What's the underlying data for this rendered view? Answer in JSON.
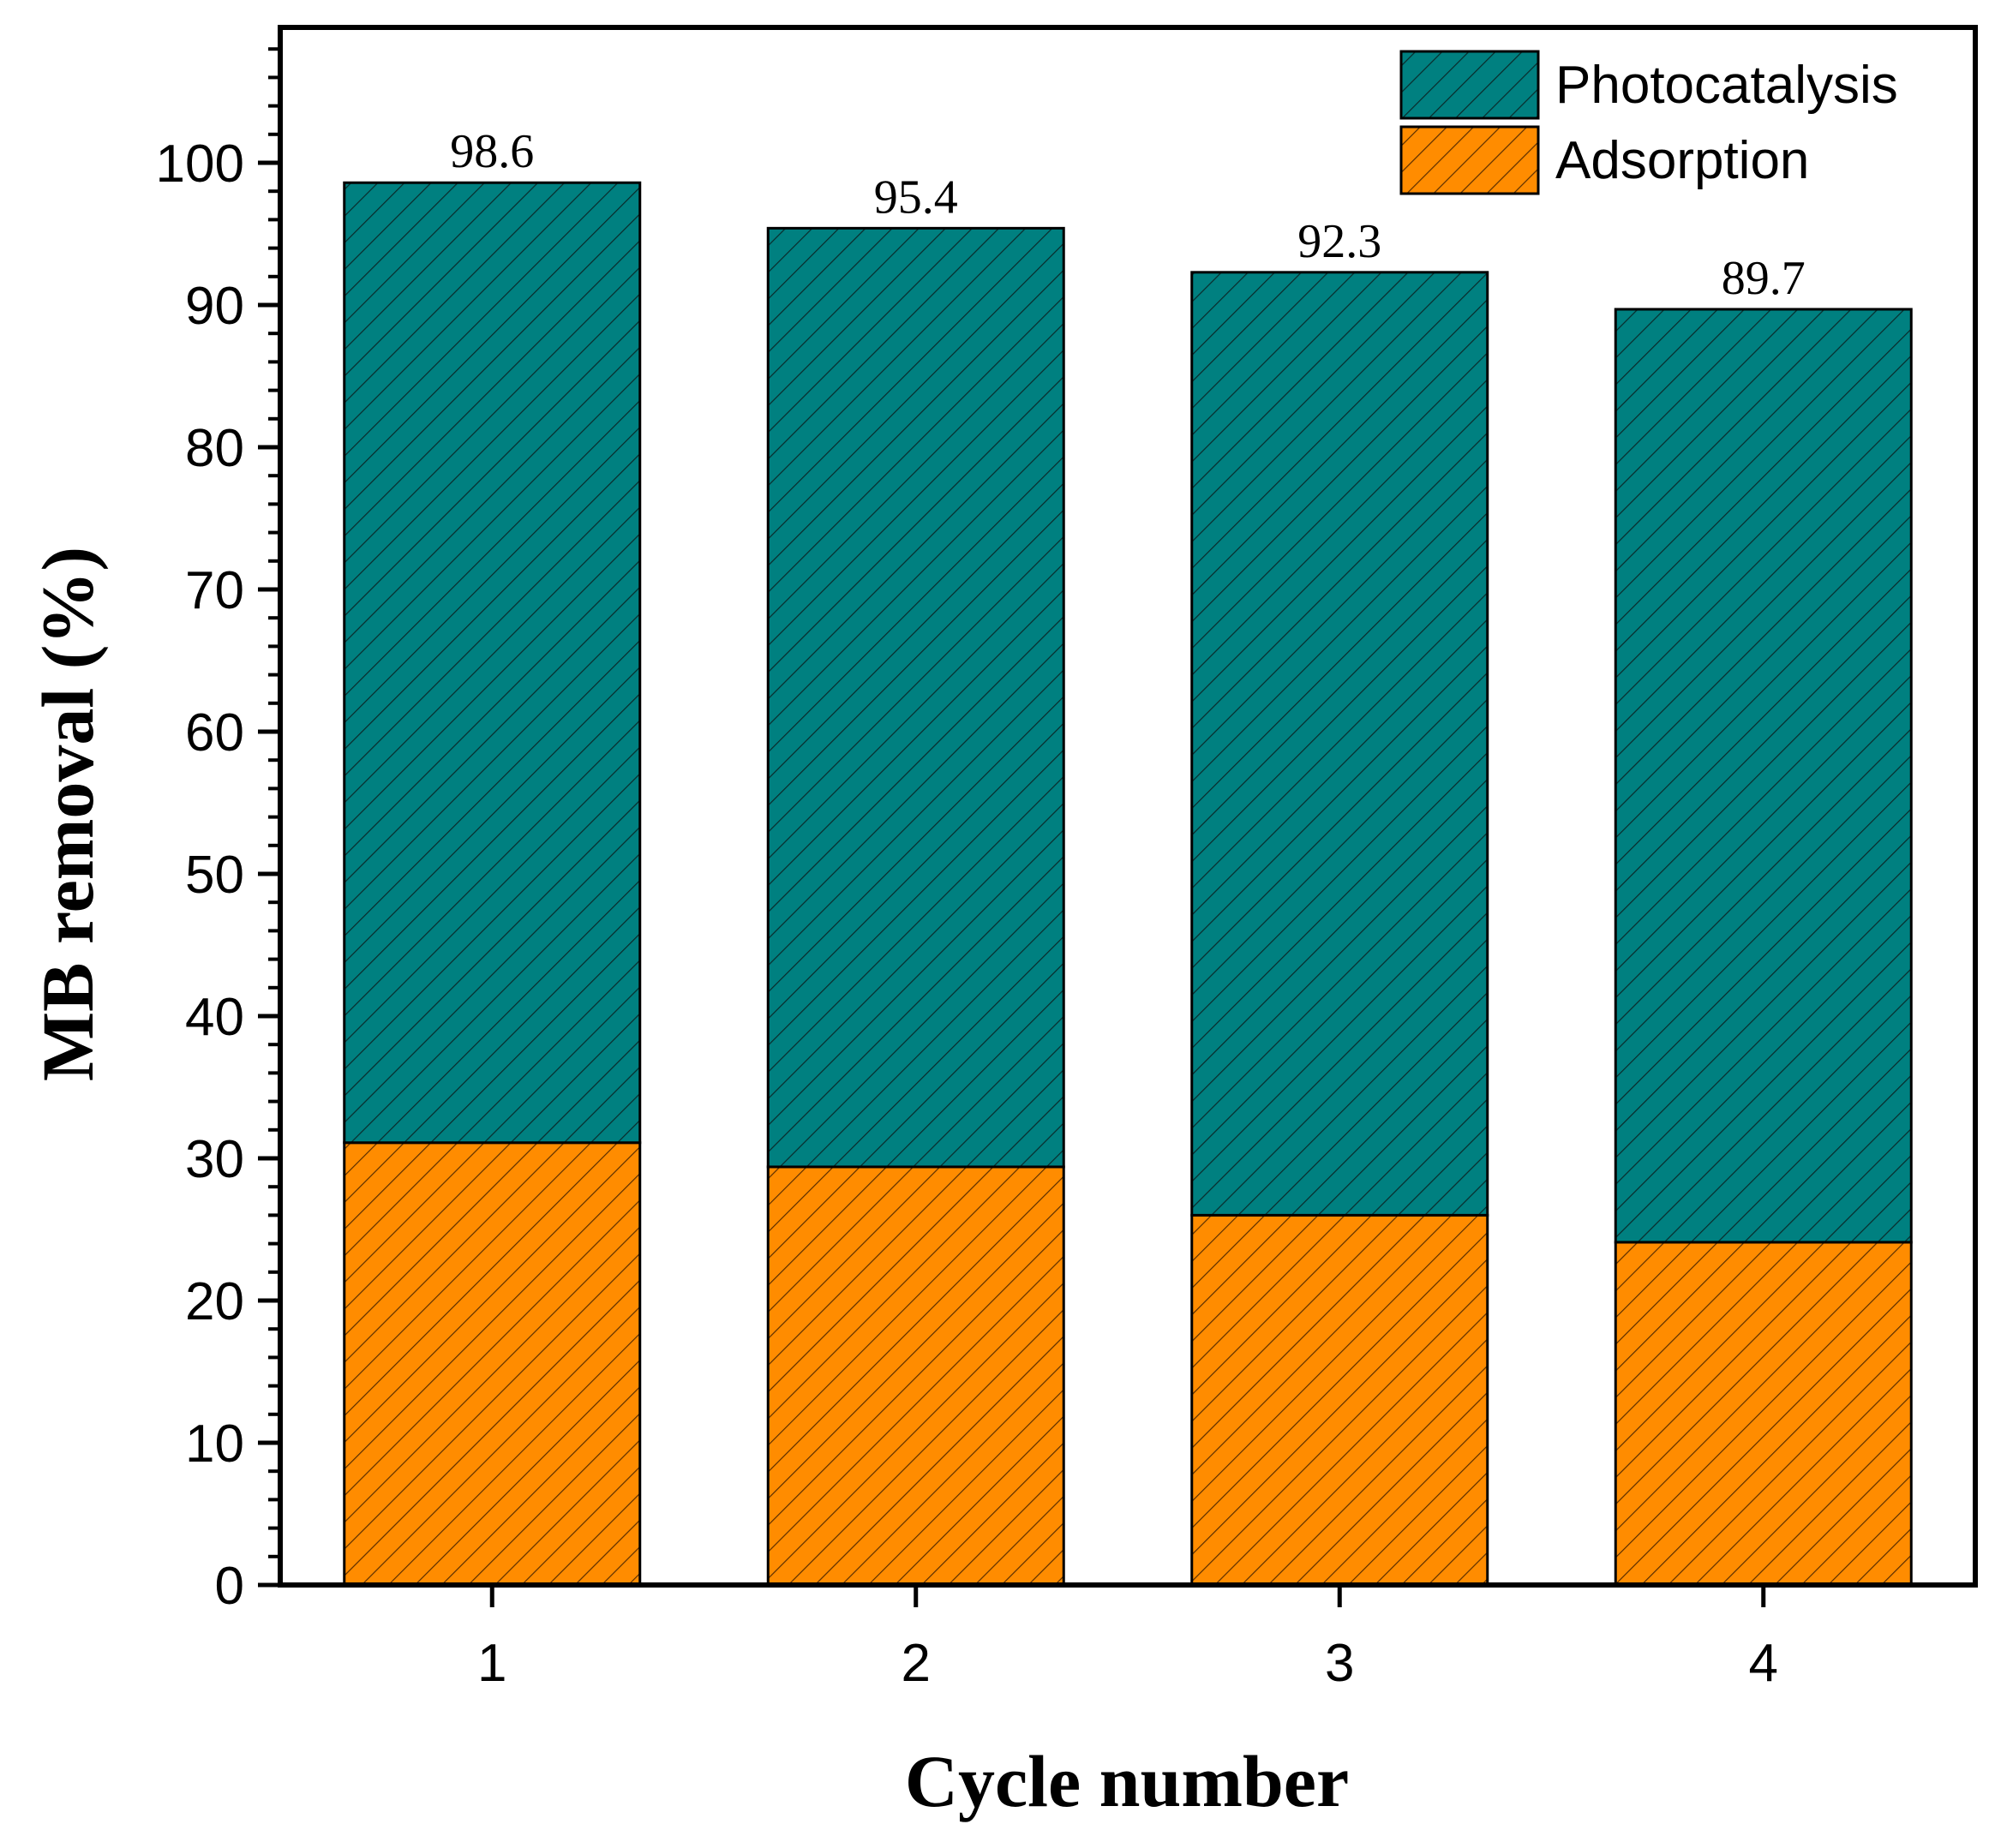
{
  "chart_data": {
    "type": "bar",
    "stacked": true,
    "categories": [
      "1",
      "2",
      "3",
      "4"
    ],
    "series": [
      {
        "name": "Adsorption",
        "values": [
          31.1,
          29.4,
          26.0,
          24.1
        ],
        "color": "#ff8c00",
        "pattern": "diagonal-hatch"
      },
      {
        "name": "Photocatalysis",
        "values": [
          67.5,
          66.0,
          66.3,
          65.6
        ],
        "color": "#008080",
        "pattern": "diagonal-hatch"
      }
    ],
    "totals": [
      98.6,
      95.4,
      92.3,
      89.7
    ],
    "total_labels": [
      "98.6",
      "95.4",
      "92.3",
      "89.7"
    ],
    "xlabel": "Cycle number",
    "ylabel": "MB removal (%)",
    "ylim": [
      0,
      110
    ],
    "yticks": [
      0,
      10,
      20,
      30,
      40,
      50,
      60,
      70,
      80,
      90,
      100
    ],
    "ytick_labels": [
      "0",
      "10",
      "20",
      "30",
      "40",
      "50",
      "60",
      "70",
      "80",
      "90",
      "100"
    ],
    "grid": false,
    "legend": {
      "position": "top-right",
      "entries": [
        "Photocatalysis",
        "Adsorption"
      ]
    }
  }
}
